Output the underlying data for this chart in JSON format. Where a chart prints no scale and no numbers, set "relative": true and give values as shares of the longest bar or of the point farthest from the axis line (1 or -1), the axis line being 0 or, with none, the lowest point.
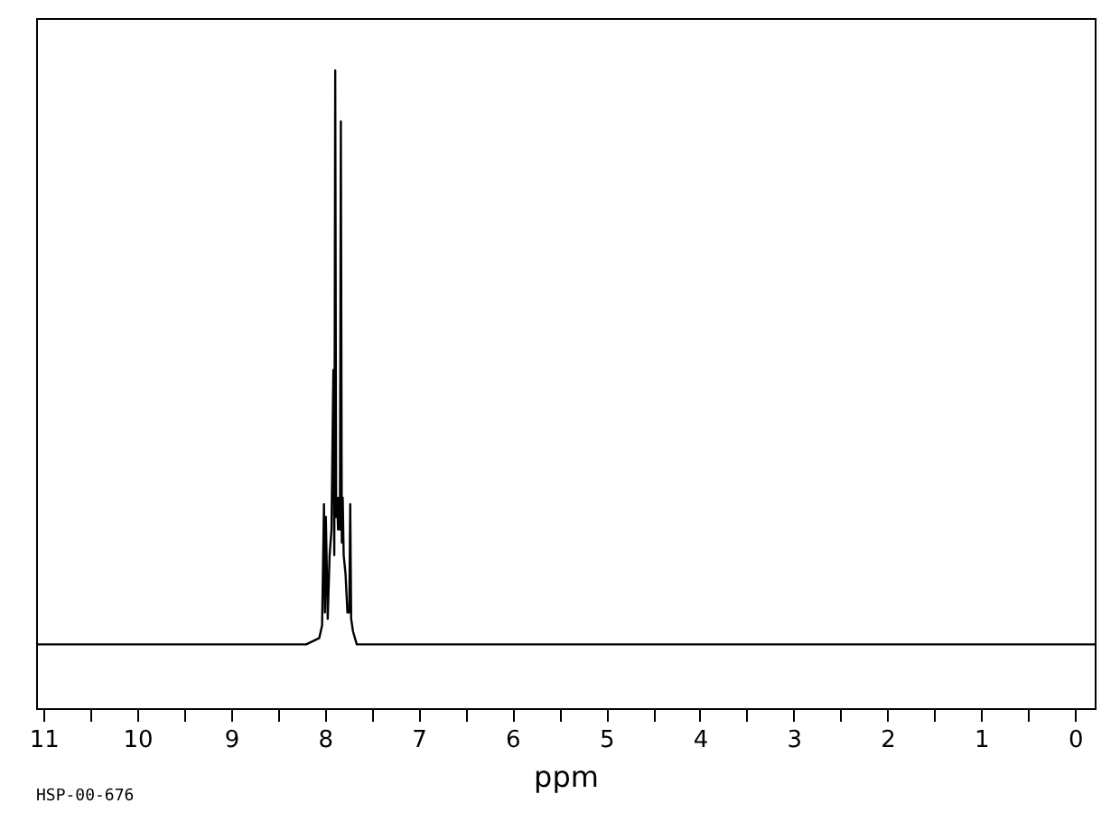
{
  "chart_data": {
    "type": "line",
    "relative": true,
    "xlabel": "ppm",
    "annotations": [
      "HSP-00-676"
    ],
    "xlim": [
      11.08,
      -0.21
    ],
    "xticks": [
      11,
      {
        "value": 10.5,
        "label": null
      },
      10,
      {
        "value": 9.5,
        "label": null
      },
      9,
      {
        "value": 8.5,
        "label": null
      },
      8,
      {
        "value": 7.5,
        "label": null
      },
      7,
      {
        "value": 6.5,
        "label": null
      },
      6,
      {
        "value": 5.5,
        "label": null
      },
      5,
      {
        "value": 4.5,
        "label": null
      },
      4,
      {
        "value": 3.5,
        "label": null
      },
      3,
      {
        "value": 2.5,
        "label": null
      },
      2,
      {
        "value": 1.5,
        "label": null
      },
      1,
      {
        "value": 0.5,
        "label": null
      },
      0
    ],
    "series": [
      {
        "color": "#000000",
        "x": [
          11.08,
          8.2,
          8.06,
          8.03,
          8.01,
          8.0,
          7.99,
          7.97,
          7.95,
          7.93,
          7.91,
          7.9,
          7.89,
          7.88,
          7.87,
          7.86,
          7.85,
          7.84,
          7.83,
          7.82,
          7.81,
          7.8,
          7.78,
          7.76,
          7.74,
          7.73,
          7.72,
          7.7,
          7.66,
          7.6,
          -0.21
        ],
        "values": [
          0.1,
          0.1,
          0.11,
          0.13,
          0.32,
          0.15,
          0.3,
          0.14,
          0.24,
          0.28,
          0.53,
          0.24,
          1,
          0.3,
          0.33,
          0.28,
          0.33,
          0.28,
          0.92,
          0.26,
          0.33,
          0.24,
          0.21,
          0.15,
          0.15,
          0.32,
          0.14,
          0.12,
          0.1,
          0.1,
          0.1
        ]
      }
    ]
  }
}
